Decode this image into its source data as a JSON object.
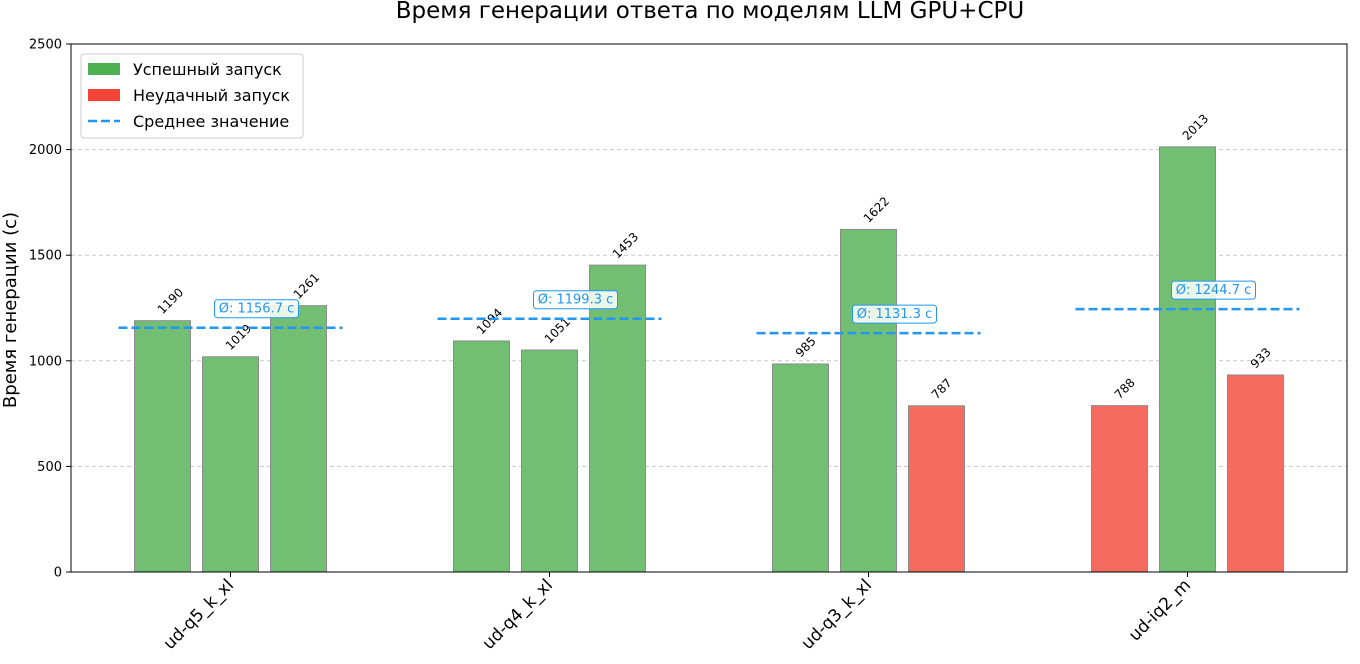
{
  "chart_data": {
    "type": "bar",
    "title": "Время генерации ответа по моделям LLM GPU+CPU",
    "ylabel": "Время генерации (с)",
    "xlabel": "",
    "ylim": [
      0,
      2500
    ],
    "yticks": [
      0,
      500,
      1000,
      1500,
      2000,
      2500
    ],
    "grid": "y-dashed",
    "legend_position": "top-left",
    "categories": [
      "ud-q5_k_xl",
      "ud-q4_k_xl",
      "ud-q3_k_xl",
      "ud-iq2_m"
    ],
    "groups": [
      {
        "category": "ud-q5_k_xl",
        "runs": [
          {
            "value": 1190,
            "status": "success",
            "label": "1190"
          },
          {
            "value": 1019,
            "status": "success",
            "label": "1019"
          },
          {
            "value": 1261,
            "status": "success",
            "label": "1261"
          }
        ],
        "average": 1156.7,
        "average_label": "Ø: 1156.7 c"
      },
      {
        "category": "ud-q4_k_xl",
        "runs": [
          {
            "value": 1094,
            "status": "success",
            "label": "1094"
          },
          {
            "value": 1051,
            "status": "success",
            "label": "1051"
          },
          {
            "value": 1453,
            "status": "success",
            "label": "1453"
          }
        ],
        "average": 1199.3,
        "average_label": "Ø: 1199.3 c"
      },
      {
        "category": "ud-q3_k_xl",
        "runs": [
          {
            "value": 985,
            "status": "success",
            "label": "985"
          },
          {
            "value": 1622,
            "status": "success",
            "label": "1622"
          },
          {
            "value": 787,
            "status": "failure",
            "label": "787"
          }
        ],
        "average": 1131.3,
        "average_label": "Ø: 1131.3 c"
      },
      {
        "category": "ud-iq2_m",
        "runs": [
          {
            "value": 788,
            "status": "failure",
            "label": "788"
          },
          {
            "value": 2013,
            "status": "success",
            "label": "2013"
          },
          {
            "value": 933,
            "status": "failure",
            "label": "933"
          }
        ],
        "average": 1244.7,
        "average_label": "Ø: 1244.7 c"
      }
    ],
    "legend": [
      {
        "key": "success",
        "label": "Успешный запуск",
        "kind": "patch",
        "color": "#4caf50"
      },
      {
        "key": "failure",
        "label": "Неудачный запуск",
        "kind": "patch",
        "color": "#f44336"
      },
      {
        "key": "average",
        "label": "Среднее значение",
        "kind": "dashed-line",
        "color": "#2196f3"
      }
    ],
    "colors": {
      "success_fill": "#72bf73",
      "failure_fill": "#f66b5f",
      "bar_edge": "#8c8c8c",
      "average_line": "#2196f3",
      "grid": "#c8c8c8"
    }
  }
}
